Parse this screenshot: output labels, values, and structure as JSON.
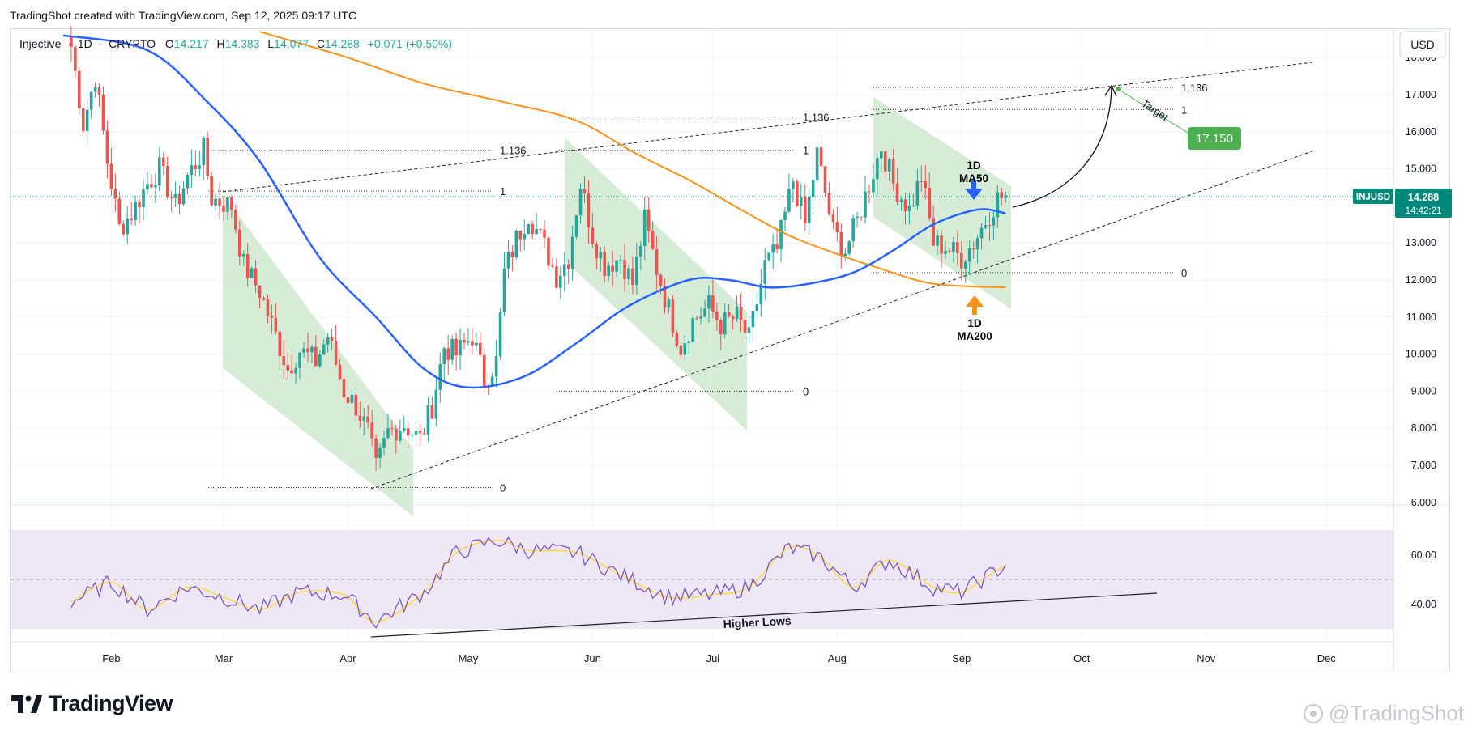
{
  "header": {
    "caption": "TradingShot created with TradingView.com, Sep 12, 2025 09:17 UTC"
  },
  "symbol_bar": {
    "name": "Injective",
    "sep": "·",
    "interval": "1D",
    "exchange": "CRYPTO",
    "o_label": "O",
    "o_value": "14.217",
    "h_label": "H",
    "h_value": "14.383",
    "l_label": "L",
    "l_value": "14.077",
    "c_label": "C",
    "c_value": "14.288",
    "change": "+0.071 (+0.50%)"
  },
  "currency_button": "USD",
  "price_axis": {
    "ticks": [
      "18.000",
      "17.000",
      "16.000",
      "15.000",
      "14.000",
      "13.000",
      "12.000",
      "11.000",
      "10.000",
      "9.000",
      "8.000",
      "7.000",
      "6.000"
    ],
    "last_price_label": "INJUSD",
    "last_price": "14.288",
    "countdown": "14:42:21",
    "target_price": "17.150"
  },
  "rsi_axis": {
    "ticks": [
      "60.00",
      "40.00"
    ]
  },
  "time_axis": {
    "ticks": [
      "Feb",
      "Mar",
      "Apr",
      "May",
      "Jun",
      "Jul",
      "Aug",
      "Sep",
      "Oct",
      "Nov",
      "Dec"
    ]
  },
  "annotations": {
    "fib_1136": "1.136",
    "fib_1": "1",
    "fib_0": "0",
    "ma50_label_1": "1D",
    "ma50_label_2": "MA50",
    "ma200_label_1": "1D",
    "ma200_label_2": "MA200",
    "target_label": "Target",
    "higher_lows": "Higher Lows"
  },
  "footer": {
    "brand": "TradingView",
    "watermark": "@TradingShot"
  },
  "colors": {
    "up": "#26a69a",
    "down": "#ef5350",
    "ma50": "#2962ff",
    "ma200": "#f7931a",
    "channel_fill": "#c8e6c9",
    "rsi_band": "#ede7f6",
    "rsi_line": "#7e57c2",
    "rsi_ma": "#fdd835",
    "target_box": "#4caf50",
    "last_price_box": "#00897b"
  },
  "chart_data": {
    "type": "candlestick",
    "symbol": "INJUSD",
    "interval": "1D",
    "ylim": [
      5.8,
      18.3
    ],
    "x_range": [
      "2025-01-20",
      "2025-12-20"
    ],
    "last": {
      "open": 14.217,
      "high": 14.383,
      "low": 14.077,
      "close": 14.288,
      "change": 0.071,
      "change_pct": 0.5
    },
    "series": [
      {
        "name": "Injective",
        "type": "candlestick",
        "close_path": [
          [
            "2025-01-22",
            18.3
          ],
          [
            "2025-01-25",
            16.2
          ],
          [
            "2025-01-28",
            17.5
          ],
          [
            "2025-01-31",
            15.2
          ],
          [
            "2025-02-03",
            13.4
          ],
          [
            "2025-02-06",
            13.8
          ],
          [
            "2025-02-10",
            14.6
          ],
          [
            "2025-02-13",
            15.0
          ],
          [
            "2025-02-17",
            14.0
          ],
          [
            "2025-02-20",
            14.8
          ],
          [
            "2025-02-24",
            15.5
          ],
          [
            "2025-02-26",
            14.2
          ],
          [
            "2025-03-03",
            14.0
          ],
          [
            "2025-03-06",
            12.4
          ],
          [
            "2025-03-10",
            11.7
          ],
          [
            "2025-03-13",
            10.8
          ],
          [
            "2025-03-17",
            9.6
          ],
          [
            "2025-03-20",
            10.1
          ],
          [
            "2025-03-24",
            9.8
          ],
          [
            "2025-03-27",
            10.5
          ],
          [
            "2025-03-31",
            9.0
          ],
          [
            "2025-04-03",
            8.6
          ],
          [
            "2025-04-06",
            7.9
          ],
          [
            "2025-04-08",
            6.9
          ],
          [
            "2025-04-11",
            7.9
          ],
          [
            "2025-04-15",
            8.1
          ],
          [
            "2025-04-19",
            7.7
          ],
          [
            "2025-04-22",
            8.6
          ],
          [
            "2025-04-25",
            10.2
          ],
          [
            "2025-04-28",
            10.0
          ],
          [
            "2025-05-02",
            10.5
          ],
          [
            "2025-05-05",
            9.3
          ],
          [
            "2025-05-08",
            9.8
          ],
          [
            "2025-05-10",
            12.2
          ],
          [
            "2025-05-13",
            13.1
          ],
          [
            "2025-05-16",
            13.8
          ],
          [
            "2025-05-20",
            12.9
          ],
          [
            "2025-05-23",
            12.1
          ],
          [
            "2025-05-26",
            12.6
          ],
          [
            "2025-05-29",
            14.6
          ],
          [
            "2025-06-01",
            13.2
          ],
          [
            "2025-06-04",
            12.4
          ],
          [
            "2025-06-08",
            12.6
          ],
          [
            "2025-06-11",
            11.9
          ],
          [
            "2025-06-14",
            13.6
          ],
          [
            "2025-06-17",
            12.3
          ],
          [
            "2025-06-20",
            11.2
          ],
          [
            "2025-06-23",
            10.2
          ],
          [
            "2025-06-26",
            10.9
          ],
          [
            "2025-06-30",
            11.3
          ],
          [
            "2025-07-03",
            10.8
          ],
          [
            "2025-07-07",
            11.0
          ],
          [
            "2025-07-10",
            10.4
          ],
          [
            "2025-07-14",
            12.4
          ],
          [
            "2025-07-17",
            12.8
          ],
          [
            "2025-07-21",
            14.7
          ],
          [
            "2025-07-24",
            13.5
          ],
          [
            "2025-07-27",
            15.4
          ],
          [
            "2025-07-31",
            13.3
          ],
          [
            "2025-08-03",
            12.8
          ],
          [
            "2025-08-06",
            13.6
          ],
          [
            "2025-08-09",
            14.6
          ],
          [
            "2025-08-12",
            15.6
          ],
          [
            "2025-08-15",
            14.6
          ],
          [
            "2025-08-19",
            13.9
          ],
          [
            "2025-08-22",
            14.8
          ],
          [
            "2025-08-25",
            13.0
          ],
          [
            "2025-08-28",
            12.9
          ],
          [
            "2025-09-01",
            12.6
          ],
          [
            "2025-09-04",
            13.0
          ],
          [
            "2025-09-07",
            13.6
          ],
          [
            "2025-09-10",
            14.2
          ],
          [
            "2025-09-12",
            14.288
          ]
        ]
      },
      {
        "name": "1D MA50",
        "type": "line",
        "points": [
          [
            "2025-01-20",
            18.6
          ],
          [
            "2025-02-10",
            18.2
          ],
          [
            "2025-02-25",
            16.8
          ],
          [
            "2025-03-10",
            15.2
          ],
          [
            "2025-03-25",
            12.6
          ],
          [
            "2025-04-08",
            11.0
          ],
          [
            "2025-04-20",
            9.6
          ],
          [
            "2025-05-01",
            9.1
          ],
          [
            "2025-05-15",
            9.4
          ],
          [
            "2025-05-28",
            10.3
          ],
          [
            "2025-06-10",
            11.3
          ],
          [
            "2025-06-25",
            12.0
          ],
          [
            "2025-07-05",
            12.0
          ],
          [
            "2025-07-15",
            11.8
          ],
          [
            "2025-07-25",
            11.9
          ],
          [
            "2025-08-05",
            12.2
          ],
          [
            "2025-08-15",
            12.8
          ],
          [
            "2025-08-25",
            13.5
          ],
          [
            "2025-09-05",
            13.9
          ],
          [
            "2025-09-12",
            13.8
          ]
        ]
      },
      {
        "name": "1D MA200",
        "type": "line",
        "points": [
          [
            "2025-03-10",
            18.7
          ],
          [
            "2025-04-01",
            18.0
          ],
          [
            "2025-04-20",
            17.3
          ],
          [
            "2025-05-10",
            16.8
          ],
          [
            "2025-05-28",
            16.3
          ],
          [
            "2025-06-12",
            15.4
          ],
          [
            "2025-06-25",
            14.7
          ],
          [
            "2025-07-08",
            13.9
          ],
          [
            "2025-07-20",
            13.2
          ],
          [
            "2025-08-01",
            12.7
          ],
          [
            "2025-08-12",
            12.3
          ],
          [
            "2025-08-25",
            11.9
          ],
          [
            "2025-09-12",
            11.8
          ]
        ]
      },
      {
        "name": "RSI",
        "type": "line",
        "ylim": [
          30,
          70
        ],
        "points": [
          [
            "2025-01-22",
            41
          ],
          [
            "2025-02-01",
            49
          ],
          [
            "2025-02-10",
            38
          ],
          [
            "2025-02-20",
            47
          ],
          [
            "2025-03-01",
            43
          ],
          [
            "2025-03-10",
            38
          ],
          [
            "2025-03-20",
            45
          ],
          [
            "2025-03-31",
            44
          ],
          [
            "2025-04-08",
            33
          ],
          [
            "2025-04-20",
            45
          ],
          [
            "2025-04-28",
            61
          ],
          [
            "2025-05-08",
            66
          ],
          [
            "2025-05-16",
            62
          ],
          [
            "2025-05-28",
            61
          ],
          [
            "2025-06-08",
            52
          ],
          [
            "2025-06-20",
            43
          ],
          [
            "2025-07-01",
            44
          ],
          [
            "2025-07-10",
            47
          ],
          [
            "2025-07-20",
            63
          ],
          [
            "2025-07-28",
            59
          ],
          [
            "2025-08-05",
            47
          ],
          [
            "2025-08-14",
            58
          ],
          [
            "2025-08-25",
            47
          ],
          [
            "2025-09-01",
            45
          ],
          [
            "2025-09-07",
            51
          ],
          [
            "2025-09-12",
            56
          ]
        ]
      }
    ],
    "levels": [
      {
        "label": "1.136",
        "value": 15.5
      },
      {
        "label": "1",
        "value": 14.4
      },
      {
        "label": "0",
        "value": 6.4
      },
      {
        "label": "1.136",
        "value": 16.4
      },
      {
        "label": "1",
        "value": 15.5
      },
      {
        "label": "0",
        "value": 9.0
      },
      {
        "label": "1.136",
        "value": 17.2
      },
      {
        "label": "1",
        "value": 16.6
      },
      {
        "label": "0",
        "value": 12.2
      }
    ],
    "rsi_levels": [
      60,
      40
    ]
  }
}
